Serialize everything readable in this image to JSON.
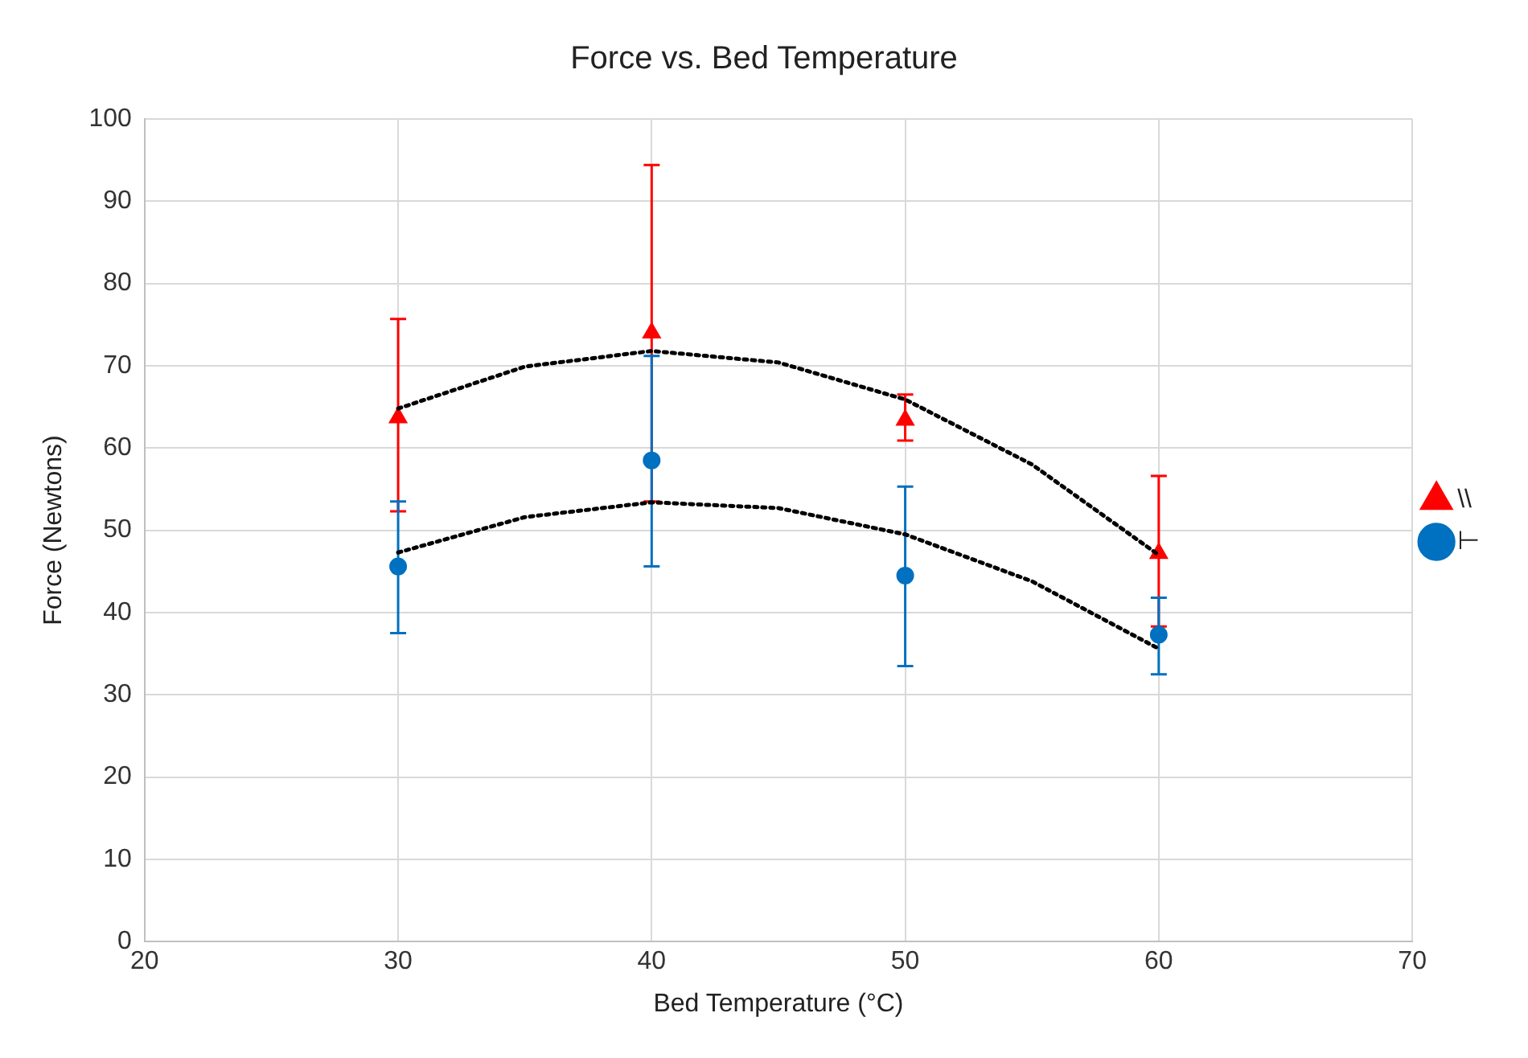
{
  "chart_data": {
    "type": "scatter",
    "title": "Force vs. Bed Temperature",
    "xlabel": "Bed Temperature (°C)",
    "ylabel": "Force (Newtons)",
    "x": [
      30,
      40,
      50,
      60
    ],
    "series": [
      {
        "name": "\\\\",
        "color": "#ff0000",
        "marker": "triangle",
        "values": [
          63.7,
          74.0,
          63.4,
          47.2
        ],
        "errors": [
          [
            52.3,
            75.7
          ],
          [
            53.5,
            94.4
          ],
          [
            60.9,
            66.5
          ],
          [
            38.3,
            56.6
          ]
        ]
      },
      {
        "name": "⊢",
        "color": "#0070c0",
        "marker": "circle",
        "values": [
          45.6,
          58.5,
          44.5,
          37.3
        ],
        "errors": [
          [
            37.5,
            53.5
          ],
          [
            45.6,
            71.2
          ],
          [
            33.5,
            55.3
          ],
          [
            32.5,
            41.8
          ]
        ]
      },
      {
        "type": "line",
        "color": "#000000",
        "marker": "none",
        "line_style": "dotted",
        "x": [
          30,
          35,
          40,
          45,
          50,
          55,
          60
        ],
        "values": [
          64.8,
          69.9,
          71.8,
          70.4,
          65.9,
          58.0,
          47.0
        ]
      },
      {
        "type": "line",
        "color": "#000000",
        "marker": "none",
        "line_style": "dotted",
        "x": [
          30,
          35,
          40,
          45,
          50,
          55,
          60
        ],
        "values": [
          47.3,
          51.6,
          53.4,
          52.7,
          49.5,
          43.8,
          35.6
        ]
      }
    ],
    "xlim": [
      20,
      70
    ],
    "xticks": [
      20,
      30,
      40,
      50,
      60,
      70
    ],
    "ylim": [
      0,
      100
    ],
    "yticks": [
      0,
      10,
      20,
      30,
      40,
      50,
      60,
      70,
      80,
      90,
      100
    ],
    "grid": true,
    "legend": "right"
  }
}
